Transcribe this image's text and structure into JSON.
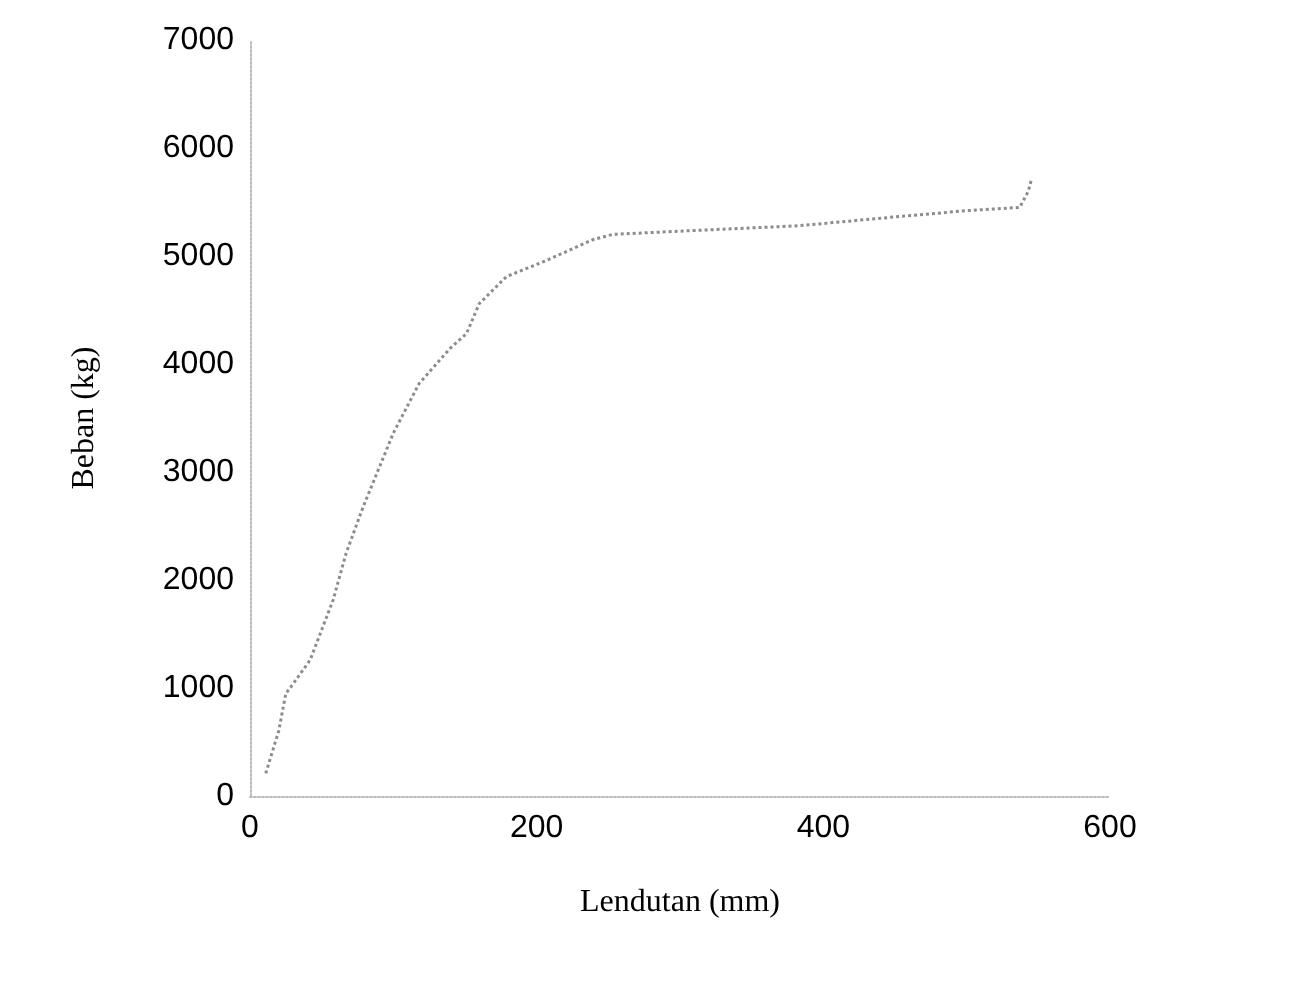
{
  "chart_data": {
    "type": "line",
    "xlabel": "Lendutan (mm)",
    "ylabel": "Beban (kg)",
    "series": [
      {
        "color": "#8c8c8c",
        "x": [
          11,
          20,
          25,
          28,
          42,
          58,
          67,
          79,
          100,
          118,
          140,
          151,
          160,
          179,
          207,
          239,
          253,
          300,
          383,
          440,
          500,
          537,
          543,
          545
        ],
        "values": [
          210,
          600,
          950,
          1000,
          1260,
          1815,
          2245,
          2680,
          3360,
          3820,
          4150,
          4280,
          4560,
          4810,
          4960,
          5150,
          5200,
          5230,
          5280,
          5350,
          5420,
          5450,
          5600,
          5700
        ]
      }
    ],
    "xlim": [
      0,
      600
    ],
    "xticks": [
      0,
      200,
      400,
      600
    ],
    "ylim": [
      0,
      7000
    ],
    "yticks": [
      0,
      1000,
      2000,
      3000,
      4000,
      5000,
      6000,
      7000
    ],
    "grid": false,
    "marker": "none",
    "line_style": "dotted"
  }
}
